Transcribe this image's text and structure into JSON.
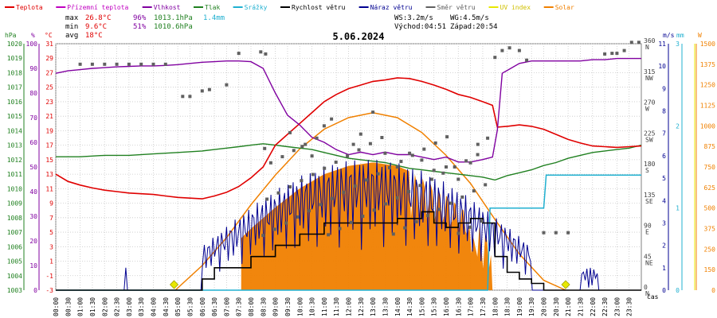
{
  "legend": [
    {
      "label": "Teplota",
      "color": "#e00000"
    },
    {
      "label": "Přízemní teplota",
      "color": "#c000c0"
    },
    {
      "label": "Vlhkost",
      "color": "#8000a0"
    },
    {
      "label": "Tlak",
      "color": "#208020"
    },
    {
      "label": "Srážky",
      "color": "#20b0d0"
    },
    {
      "label": "Rychlost větru",
      "color": "#000000"
    },
    {
      "label": "Náraz větru",
      "color": "#000090"
    },
    {
      "label": "Směr větru",
      "color": "#606060"
    },
    {
      "label": "UV index",
      "color": "#e8e800"
    },
    {
      "label": "Solar",
      "color": "#f08000"
    }
  ],
  "stats": {
    "max_label": "max",
    "max_temp": "26.8°C",
    "max_hum": "96%",
    "max_press": "1013.1hPa",
    "max_rain": "1.4mm",
    "min_label": "min",
    "min_temp": "9.6°C",
    "min_hum": "51%",
    "min_press": "1010.6hPa",
    "avg_label": "avg",
    "avg_temp": "18°C",
    "ws": "WS:3.2m/s",
    "wg": "WG:4.5m/s",
    "sunrise": "Východ:04:51",
    "sunset": "Západ:20:54"
  },
  "title": "5.06.2024",
  "axis_units": {
    "hpa": "hPa",
    "pct": "%",
    "degc": "°C",
    "ms": "m/s",
    "mm": "mm",
    "w": "W",
    "time": "čas"
  },
  "colors": {
    "temp": "#e00000",
    "hum": "#8000a0",
    "press": "#208020",
    "rain": "#20b0d0",
    "wind": "#000000",
    "gust": "#000090",
    "dir": "#606060",
    "uv": "#e8e800",
    "solar": "#f08000",
    "grid": "#c8c8c8"
  },
  "chart_data": {
    "type": "line",
    "title": "5.06.2024",
    "x_ticks": [
      "00:00",
      "00:30",
      "01:00",
      "01:30",
      "02:00",
      "02:30",
      "03:00",
      "03:30",
      "04:00",
      "04:30",
      "05:00",
      "05:30",
      "06:00",
      "06:30",
      "07:00",
      "07:30",
      "08:00",
      "08:30",
      "09:00",
      "09:30",
      "10:00",
      "10:30",
      "11:00",
      "11:30",
      "12:00",
      "12:30",
      "13:00",
      "13:30",
      "14:00",
      "14:30",
      "15:00",
      "15:30",
      "16:00",
      "16:30",
      "17:00",
      "17:30",
      "18:00",
      "18:30",
      "19:00",
      "19:30",
      "20:00",
      "20:30",
      "21:00",
      "21:30",
      "22:00",
      "22:30",
      "23:00",
      "23:30"
    ],
    "axes": {
      "pressure_hPa": {
        "range": [
          1003,
          1020
        ],
        "ticks": [
          "1003",
          "1004",
          "1005",
          "1006",
          "1007",
          "1008",
          "1009",
          "1010",
          "1011",
          "1012",
          "1013",
          "1014",
          "1015",
          "1016",
          "1017",
          "1018",
          "1019",
          "1020"
        ]
      },
      "humidity_pct": {
        "range": [
          0,
          100
        ],
        "ticks": [
          "0",
          "10",
          "20",
          "30",
          "40",
          "50",
          "60",
          "70",
          "80",
          "90",
          "100"
        ]
      },
      "temperature_C": {
        "range": [
          -3,
          31
        ],
        "ticks": [
          "-3",
          "-1",
          "1",
          "3",
          "5",
          "7",
          "9",
          "11",
          "13",
          "15",
          "17",
          "19",
          "21",
          "23",
          "25",
          "27",
          "29",
          "31"
        ]
      },
      "wind_dir": {
        "range": [
          0,
          360
        ],
        "ticks": [
          {
            "deg": "0",
            "dir": "N"
          },
          {
            "deg": "45",
            "dir": "NE"
          },
          {
            "deg": "90",
            "dir": "E"
          },
          {
            "deg": "135",
            "dir": "SE"
          },
          {
            "deg": "180",
            "dir": "S"
          },
          {
            "deg": "225",
            "dir": "SW"
          },
          {
            "deg": "270",
            "dir": "W"
          },
          {
            "deg": "315",
            "dir": "NW"
          },
          {
            "deg": "360",
            "dir": "N"
          }
        ]
      },
      "wind_ms": {
        "range": [
          0,
          11
        ],
        "ticks": [
          "0",
          "1",
          "2",
          "3",
          "4",
          "5",
          "6",
          "7",
          "8",
          "9",
          "10",
          "11"
        ]
      },
      "rain_mm": {
        "range": [
          0,
          3
        ],
        "ticks": [
          "0",
          "1",
          "2",
          "3"
        ]
      },
      "solar_W": {
        "range": [
          0,
          1500
        ],
        "ticks": [
          "0",
          "150",
          "250",
          "375",
          "500",
          "625",
          "750",
          "875",
          "1000",
          "1125",
          "1250",
          "1375",
          "1500"
        ]
      }
    },
    "series": [
      {
        "name": "Teplota",
        "axis": "temperature_C",
        "x": [
          0,
          0.5,
          1,
          1.5,
          2,
          2.5,
          3,
          3.5,
          4,
          4.5,
          5,
          5.5,
          6,
          6.5,
          7,
          7.5,
          8,
          8.5,
          9,
          9.5,
          10,
          10.5,
          11,
          11.5,
          12,
          12.5,
          13,
          13.5,
          14,
          14.5,
          15,
          15.5,
          16,
          16.5,
          17,
          17.5,
          17.9,
          18.1,
          18.5,
          19,
          19.5,
          20,
          20.5,
          21,
          21.5,
          22,
          22.5,
          23,
          23.5,
          24
        ],
        "y": [
          13,
          12,
          11.5,
          11.1,
          10.8,
          10.6,
          10.4,
          10.3,
          10.2,
          10,
          9.8,
          9.7,
          9.6,
          10,
          10.5,
          11.3,
          12.5,
          14,
          17,
          18.5,
          20,
          21.5,
          23,
          24,
          24.8,
          25.3,
          25.8,
          26,
          26.3,
          26.2,
          25.8,
          25.3,
          24.7,
          24,
          23.6,
          23,
          22.5,
          19.5,
          19.6,
          19.8,
          19.6,
          19.2,
          18.5,
          17.8,
          17.3,
          16.9,
          16.8,
          16.7,
          16.8,
          16.9
        ]
      },
      {
        "name": "Vlhkost",
        "axis": "humidity_pct",
        "x": [
          0,
          0.5,
          1,
          1.5,
          2,
          2.5,
          3,
          3.5,
          4,
          4.5,
          5,
          5.5,
          6,
          6.5,
          7,
          7.5,
          8,
          8.5,
          9,
          9.5,
          10,
          10.5,
          11,
          11.5,
          12,
          12.5,
          13,
          13.5,
          14,
          14.5,
          15,
          15.5,
          16,
          16.5,
          17,
          17.5,
          17.9,
          18.1,
          18.3,
          19,
          19.5,
          20,
          20.5,
          21,
          21.5,
          22,
          22.5,
          23,
          23.5,
          24
        ],
        "y": [
          88,
          89,
          89.5,
          90,
          90.3,
          90.6,
          90.8,
          91,
          91,
          91.2,
          91.5,
          92,
          92.5,
          92.7,
          93,
          93,
          92.7,
          90,
          80,
          71,
          67,
          62,
          60,
          57,
          55,
          56,
          55,
          56,
          55,
          55,
          54,
          53,
          54,
          52,
          52,
          53,
          54,
          65,
          88,
          92,
          93,
          93,
          93,
          93,
          93,
          93.5,
          93.5,
          94,
          94,
          94
        ]
      },
      {
        "name": "Tlak",
        "axis": "pressure_hPa",
        "x": [
          0,
          1,
          2,
          3,
          4,
          5,
          6,
          6.5,
          7,
          7.5,
          8,
          8.5,
          9,
          9.5,
          10,
          10.5,
          11,
          11.5,
          12,
          12.5,
          13,
          13.5,
          14,
          14.5,
          15,
          15.5,
          16,
          16.5,
          17,
          17.5,
          18,
          18.5,
          19,
          19.5,
          20,
          20.5,
          21,
          21.5,
          22,
          22.5,
          23,
          23.5,
          24
        ],
        "y": [
          1012.2,
          1012.2,
          1012.3,
          1012.3,
          1012.4,
          1012.5,
          1012.6,
          1012.7,
          1012.8,
          1012.9,
          1013,
          1013.1,
          1013.0,
          1012.9,
          1012.8,
          1012.7,
          1012.5,
          1012.3,
          1012.1,
          1012.0,
          1011.9,
          1011.8,
          1011.6,
          1011.4,
          1011.3,
          1011.2,
          1011.1,
          1011.0,
          1010.9,
          1010.8,
          1010.6,
          1010.9,
          1011.1,
          1011.3,
          1011.6,
          1011.8,
          1012.1,
          1012.3,
          1012.5,
          1012.6,
          1012.7,
          1012.8,
          1013.0
        ]
      },
      {
        "name": "Srážky",
        "axis": "rain_mm",
        "x": [
          0,
          17.7,
          17.8,
          20.0,
          20.1,
          24
        ],
        "y": [
          0,
          0,
          1.0,
          1.0,
          1.4,
          1.4
        ]
      },
      {
        "name": "Rychlost větru",
        "axis": "wind_ms",
        "x": [
          0,
          5,
          6,
          6.5,
          7,
          8,
          9,
          10,
          11,
          12,
          13,
          14,
          15,
          15.5,
          16,
          16.5,
          17,
          17.5,
          18,
          18.5,
          19,
          19.5,
          20,
          24
        ],
        "y": [
          0,
          0,
          0.5,
          1,
          1,
          1.5,
          2,
          2.5,
          3,
          3,
          3,
          3.2,
          3.5,
          3,
          2.8,
          3,
          3.2,
          3,
          1.5,
          0.8,
          0.5,
          0.3,
          0,
          0
        ]
      },
      {
        "name": "Solar",
        "axis": "solar_W",
        "x": [
          4.9,
          6,
          7,
          8,
          9,
          10,
          11,
          12,
          13,
          14,
          15,
          16,
          17,
          18,
          19,
          20,
          20.9
        ],
        "y": [
          0,
          150,
          320,
          520,
          700,
          860,
          980,
          1050,
          1080,
          1050,
          960,
          820,
          650,
          430,
          220,
          60,
          0
        ]
      }
    ],
    "markers": {
      "uv_sunrise": "04:51",
      "uv_sunset": "20:54"
    },
    "grid": true,
    "legend_position": "top"
  }
}
